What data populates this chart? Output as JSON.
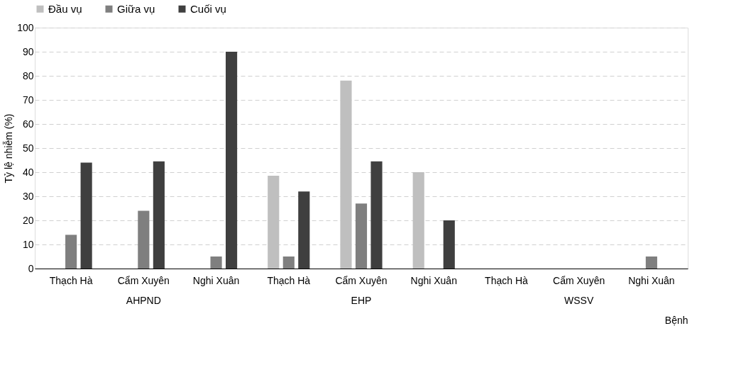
{
  "chart_data": {
    "type": "bar",
    "ylabel": "Tỷ lệ nhiễm (%)",
    "xlabel": "Bệnh",
    "categories": [
      "Thạch Hà",
      "Cẩm Xuyên",
      "Nghi Xuân",
      "Thạch Hà",
      "Cẩm Xuyên",
      "Nghi Xuân",
      "Thạch Hà",
      "Cẩm Xuyên",
      "Nghi Xuân"
    ],
    "series": [
      {
        "name": "Đầu vụ",
        "color": "#bfbfbf",
        "values": [
          0,
          0,
          0,
          38.5,
          78,
          40,
          0,
          0,
          0
        ]
      },
      {
        "name": "Giữa vụ",
        "color": "#7f7f7f",
        "values": [
          14,
          24,
          5,
          5,
          27,
          0,
          0,
          0,
          5
        ]
      },
      {
        "name": "Cuối vụ",
        "color": "#3f3f3f",
        "values": [
          44,
          44.5,
          90,
          32,
          44.5,
          20,
          0,
          0,
          0
        ]
      }
    ],
    "annotations": [
      "AHPND",
      "EHP",
      "WSSV"
    ],
    "ylim": [
      0,
      100
    ],
    "yticks": [
      0,
      10,
      20,
      30,
      40,
      50,
      60,
      70,
      80,
      90,
      100
    ],
    "grid": "y",
    "legend": "top"
  }
}
